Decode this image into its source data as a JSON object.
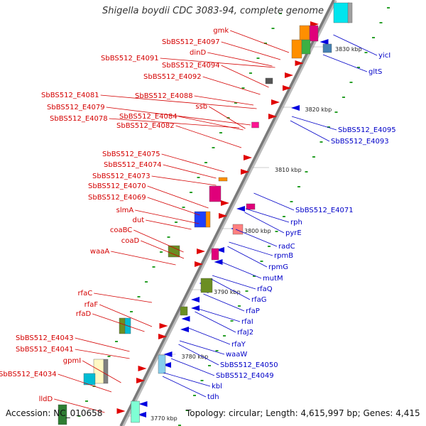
{
  "title": "Shigella boydii CDC 3083-94, complete genome",
  "accession": "Accession: NC_010658",
  "topology": "Topology: circular; Length: 4,615,997 bp; Genes: 4,415",
  "colors": {
    "left_label": "#d40000",
    "right_label": "#0000c8",
    "backbone": "#7a7a7a",
    "tick_green": "#2aa02a"
  },
  "ticks": [
    "3830 kbp",
    "3820 kbp",
    "3810 kbp",
    "3800 kbp",
    "3790 kbp",
    "3780 kbp",
    "3770 kbp"
  ],
  "left_labels": [
    "gmk",
    "SbBS512_E4097",
    "dinD",
    "SbBS512_E4091",
    "SbBS512_E4094",
    "SbBS512_E4092",
    "SbBS512_E4081",
    "SbBS512_E4088",
    "ssb",
    "SbBS512_E4079",
    "SbBS512_E4084",
    "SbBS512_E4078",
    "SbBS512_E4082",
    "SbBS512_E4075",
    "SbBS512_E4074",
    "SbBS512_E4073",
    "SbBS512_E4070",
    "SbBS512_E4069",
    "slmA",
    "dut",
    "coaBC",
    "coaD",
    "waaA",
    "rfaC",
    "rfaF",
    "rfaD",
    "SbBS512_E4043",
    "SbBS512_E4041",
    "gpmI",
    "SbBS512_E4034",
    "lldD"
  ],
  "right_labels": [
    "yicI",
    "gltS",
    "SbBS512_E4095",
    "SbBS512_E4093",
    "SbBS512_E4071",
    "rph",
    "pyrE",
    "radC",
    "rpmB",
    "rpmG",
    "mutM",
    "rfaQ",
    "rfaG",
    "rfaP",
    "rfaI",
    "rfaJ2",
    "rfaY",
    "waaW",
    "SbBS512_E4050",
    "SbBS512_E4049",
    "kbl",
    "tdh"
  ]
}
